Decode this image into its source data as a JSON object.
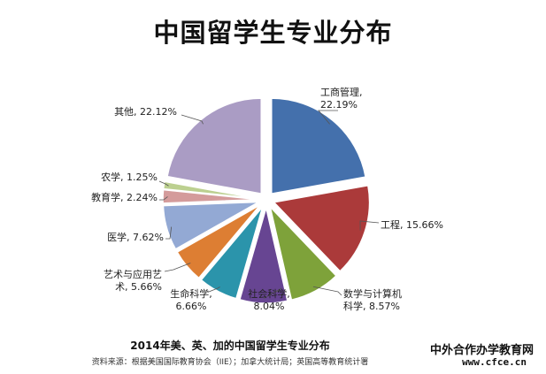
{
  "title": "中国留学生专业分布",
  "caption": "2014年美、英、加的中国留学生专业分布",
  "source": "资料来源：根据美国国际教育协会（IIE）；加拿大统计局；英国高等教育统计署",
  "watermark": {
    "name": "中外合作办学教育网",
    "url": "www.cfce.cn"
  },
  "chart_data": {
    "type": "pie",
    "title": "中国留学生专业分布",
    "slices": [
      {
        "label_lines": [
          "工商管理,",
          "22.19%"
        ],
        "value": 22.19,
        "color": "#4470ac"
      },
      {
        "label_lines": [
          "工程, 15.66%"
        ],
        "value": 15.66,
        "color": "#ab3a3a"
      },
      {
        "label_lines": [
          "数学与计算机",
          "科学, 8.57%"
        ],
        "value": 8.57,
        "color": "#7ea23a"
      },
      {
        "label_lines": [
          "社会科学,",
          "8.04%"
        ],
        "value": 8.04,
        "color": "#674592"
      },
      {
        "label_lines": [
          "生命科学,",
          "6.66%"
        ],
        "value": 6.66,
        "color": "#2b94ab"
      },
      {
        "label_lines": [
          "艺术与应用艺",
          "术, 5.66%"
        ],
        "value": 5.66,
        "color": "#dd7e33"
      },
      {
        "label_lines": [
          "医学, 7.62%"
        ],
        "value": 7.62,
        "color": "#93a9d4"
      },
      {
        "label_lines": [
          "教育学, 2.24%"
        ],
        "value": 2.24,
        "color": "#d49b9b"
      },
      {
        "label_lines": [
          "农学, 1.25%"
        ],
        "value": 1.25,
        "color": "#bcd090"
      },
      {
        "label_lines": [
          "其他, 22.12%"
        ],
        "value": 22.12,
        "color": "#aa9cc4"
      }
    ]
  }
}
